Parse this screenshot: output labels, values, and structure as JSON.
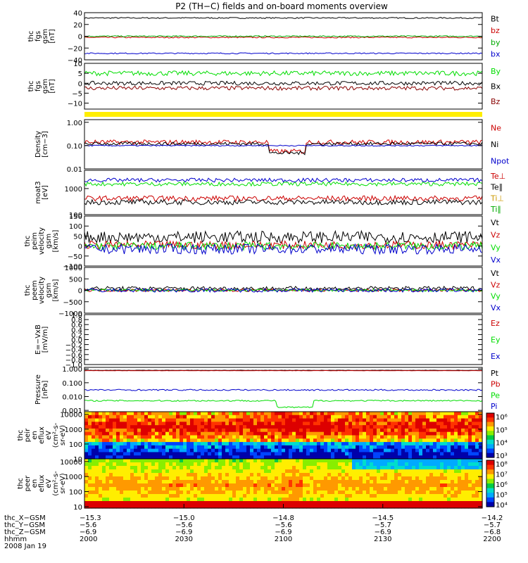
{
  "title": "P2 (TH−C) fields and on-board moments overview",
  "colors": {
    "black": "#000000",
    "red": "#cc0000",
    "green": "#00dd00",
    "blue": "#0000cc",
    "yellow": "#ffee00",
    "darkred": "#880000"
  },
  "chart_data": [
    {
      "type": "line",
      "ylabel": [
        "thc",
        "fgs",
        "gsm",
        "[nT]"
      ],
      "ylim": [
        -40,
        40
      ],
      "yticks": [
        "40",
        "20",
        "0",
        "−20",
        "−40"
      ],
      "ytickvals": [
        40,
        20,
        0,
        -20,
        -40
      ],
      "series": [
        {
          "name": "Bt",
          "color": "#000000",
          "level": 31,
          "noise": 1
        },
        {
          "name": "bz",
          "color": "#cc0000",
          "level": -2,
          "noise": 1
        },
        {
          "name": "by",
          "color": "#00aa00",
          "level": 0,
          "noise": 1
        },
        {
          "name": "bx",
          "color": "#0000cc",
          "level": -29,
          "noise": 1
        }
      ]
    },
    {
      "type": "line",
      "ylabel": [
        "thc",
        "fgs",
        "gsm",
        "[nT]"
      ],
      "ylim": [
        -13,
        10
      ],
      "yticks": [
        "10",
        "5",
        "0",
        "−5",
        "−10"
      ],
      "ytickvals": [
        10,
        5,
        0,
        -5,
        -10
      ],
      "series": [
        {
          "name": "By",
          "color": "#00dd00",
          "level": 5,
          "noise": 1.2
        },
        {
          "name": "Bx",
          "color": "#000000",
          "level": 0,
          "noise": 1
        },
        {
          "name": "Bz",
          "color": "#880000",
          "level": -2.5,
          "noise": 1
        }
      ]
    },
    {
      "type": "line",
      "log": true,
      "ylabel": [
        "Density",
        "[cm−3]"
      ],
      "ylim": [
        0.01,
        1.3
      ],
      "yticks": [
        "1.00",
        "0.10",
        "0.01"
      ],
      "ytickvals": [
        1,
        0.1,
        0.01
      ],
      "series": [
        {
          "name": "Ne",
          "color": "#cc0000",
          "level": 0.14,
          "noise": 0.2
        },
        {
          "name": "Ni",
          "color": "#000000",
          "level": 0.12,
          "noise": 0.15
        },
        {
          "name": "Npot",
          "color": "#0000cc",
          "level": 0.1,
          "noise": 0.05
        }
      ]
    },
    {
      "type": "line",
      "log": true,
      "ylabel": [
        "moat3",
        "[eV]"
      ],
      "ylim": [
        100,
        5000
      ],
      "yticks": [
        "1000",
        "100"
      ],
      "ytickvals": [
        1000,
        100
      ],
      "series": [
        {
          "name": "Te⊥",
          "color": "#cc0000",
          "level": 420,
          "noise": 0.2
        },
        {
          "name": "Te∥",
          "color": "#000000",
          "level": 300,
          "noise": 0.2
        },
        {
          "name": "Ti⊥",
          "color": "#00dd00",
          "level": 1500,
          "noise": 0.15
        },
        {
          "name": "Ti∥",
          "color": "#0000cc",
          "level": 2100,
          "noise": 0.15
        }
      ],
      "legend": [
        {
          "name": "Te⊥",
          "color": "#cc0000"
        },
        {
          "name": "Te∥",
          "color": "#000000"
        },
        {
          "name": "Ti⊥",
          "color": "#cc9900"
        },
        {
          "name": "Ti∥",
          "color": "#00aa00"
        }
      ]
    },
    {
      "type": "line",
      "ylabel": [
        "thc",
        "peim",
        "velocity",
        "gsm",
        "[km/s]"
      ],
      "ylim": [
        -100,
        150
      ],
      "yticks": [
        "150",
        "100",
        "50",
        "0",
        "−50",
        "−100"
      ],
      "ytickvals": [
        150,
        100,
        50,
        0,
        -50,
        -100
      ],
      "series": [
        {
          "name": "Vt",
          "color": "#000000",
          "level": 45,
          "noise": 30
        },
        {
          "name": "Vz",
          "color": "#cc0000",
          "level": 5,
          "noise": 20
        },
        {
          "name": "Vy",
          "color": "#00dd00",
          "level": 0,
          "noise": 20
        },
        {
          "name": "Vx",
          "color": "#0000cc",
          "level": -15,
          "noise": 25
        }
      ]
    },
    {
      "type": "line",
      "ylabel": [
        "thc",
        "peem",
        "velocity",
        "gsm",
        "[km/s]"
      ],
      "ylim": [
        -1000,
        1000
      ],
      "yticks": [
        "1000",
        "500",
        "0",
        "−500",
        "−1000"
      ],
      "ytickvals": [
        1000,
        500,
        0,
        -500,
        -1000
      ],
      "series": [
        {
          "name": "Vt",
          "color": "#000000",
          "level": 80,
          "noise": 90
        },
        {
          "name": "Vz",
          "color": "#cc0000",
          "level": 0,
          "noise": 60
        },
        {
          "name": "Vy",
          "color": "#00dd00",
          "level": 0,
          "noise": 50
        },
        {
          "name": "Vx",
          "color": "#0000cc",
          "level": 0,
          "noise": 80
        }
      ]
    },
    {
      "type": "line",
      "ylabel": [
        "E=−VxB",
        "[mV/m]"
      ],
      "ylim": [
        -1,
        1
      ],
      "yticks": [
        "1.0",
        "0.8",
        "0.6",
        "0.4",
        "0.2",
        "0.0",
        "−0.2",
        "−0.4",
        "−0.6",
        "−0.8",
        "−1.0"
      ],
      "ytickvals": [
        1,
        0.8,
        0.6,
        0.4,
        0.2,
        0,
        -0.2,
        -0.4,
        -0.6,
        -0.8,
        -1
      ],
      "series": [
        {
          "name": "Ez",
          "color": "#cc0000"
        },
        {
          "name": "Ey",
          "color": "#00dd00"
        },
        {
          "name": "Ex",
          "color": "#0000cc"
        }
      ]
    },
    {
      "type": "line",
      "log": true,
      "ylabel": [
        "Pressure",
        "[nPa]"
      ],
      "ylim": [
        0.0008,
        1.3
      ],
      "yticks": [
        "1.000",
        "0.100",
        "0.010",
        "0.001"
      ],
      "ytickvals": [
        1,
        0.1,
        0.01,
        0.001
      ],
      "series": [
        {
          "name": "Pt",
          "color": "#000000",
          "level": 0.8,
          "noise": 0.02
        },
        {
          "name": "Pb",
          "color": "#cc0000",
          "level": 0.75,
          "noise": 0.02
        },
        {
          "name": "Pe",
          "color": "#00dd00",
          "level": 0.005,
          "noise": 0.1
        },
        {
          "name": "Pi",
          "color": "#0000cc",
          "level": 0.03,
          "noise": 0.1
        }
      ]
    },
    {
      "type": "heatmap",
      "ylabel": [
        "thc",
        "peir",
        "en",
        "eflux",
        "eV",
        "(cm²-s-",
        "sr-eV)"
      ],
      "ylim": [
        10,
        15000
      ],
      "yticks": [
        "10000",
        "1000",
        "100",
        "10"
      ],
      "ytickvals": [
        10000,
        1000,
        100,
        10
      ],
      "cbar": [
        "10⁶",
        "10⁵",
        "10⁴",
        "10³"
      ]
    },
    {
      "type": "heatmap",
      "ylabel": [
        "thc",
        "peer",
        "en",
        "eflux",
        "eV",
        "(cm²-s-",
        "sr-eV)"
      ],
      "ylim": [
        8,
        15000
      ],
      "yticks": [
        "10000",
        "1000",
        "100",
        "10"
      ],
      "ytickvals": [
        10000,
        1000,
        100,
        10
      ],
      "cbar": [
        "10⁸",
        "10⁷",
        "10⁶",
        "10⁵",
        "10⁴"
      ]
    }
  ],
  "xaxis": {
    "rows": [
      {
        "label": "thc_X−GSM",
        "values": [
          "−15.3",
          "−15.0",
          "−14.8",
          "−14.5",
          "−14.2"
        ]
      },
      {
        "label": "thc_Y−GSM",
        "values": [
          "−5.6",
          "−5.6",
          "−5.6",
          "−5.7",
          "−5.7"
        ]
      },
      {
        "label": "thc_Z−GSM",
        "values": [
          "−6.9",
          "−6.9",
          "−6.9",
          "−6.9",
          "−6.8"
        ]
      },
      {
        "label": "hhmm",
        "values": [
          "2000",
          "2030",
          "2100",
          "2130",
          "2200"
        ]
      }
    ],
    "date": "2008 Jan 19"
  }
}
